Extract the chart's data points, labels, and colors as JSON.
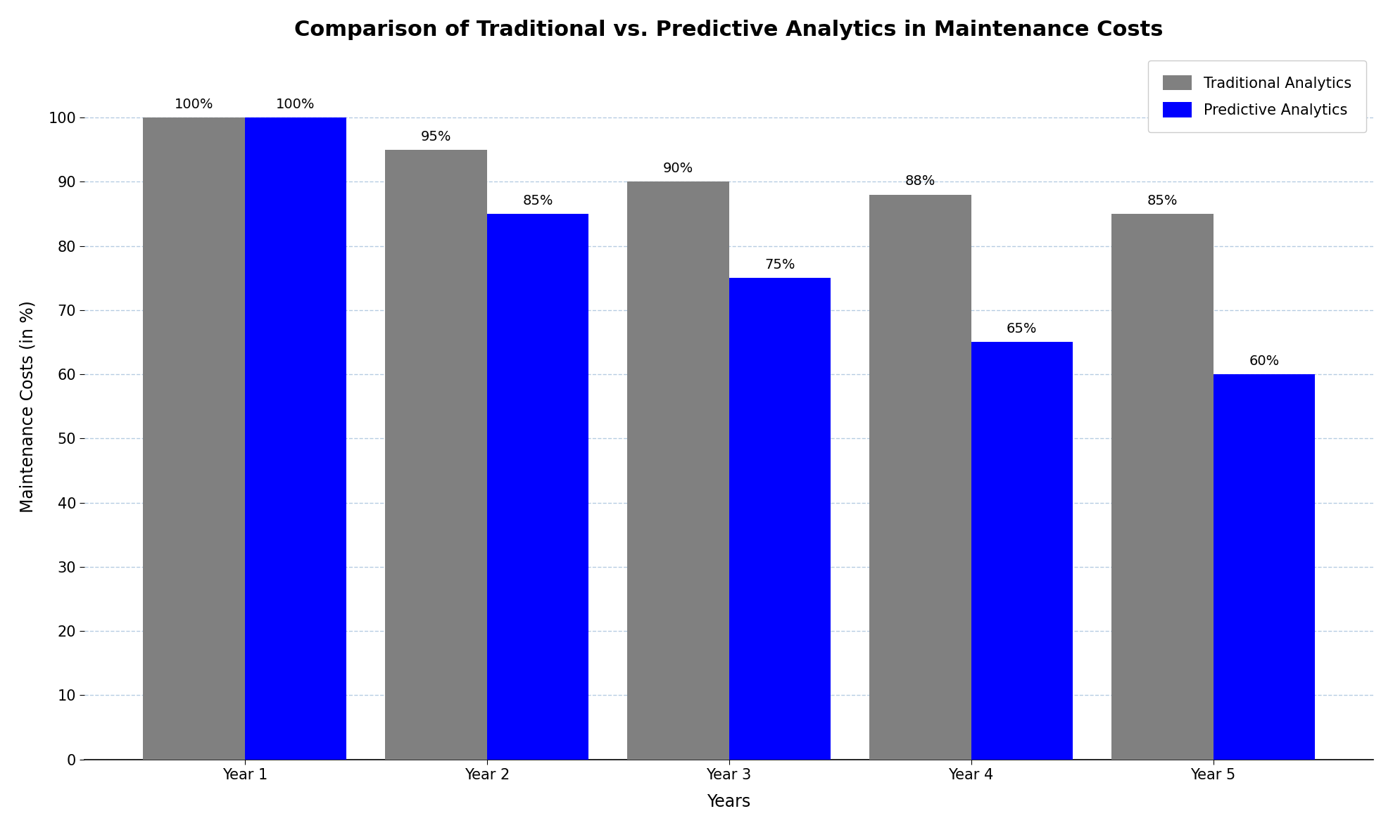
{
  "title": "Comparison of Traditional vs. Predictive Analytics in Maintenance Costs",
  "xlabel": "Years",
  "ylabel": "Maintenance Costs (in %)",
  "categories": [
    "Year 1",
    "Year 2",
    "Year 3",
    "Year 4",
    "Year 5"
  ],
  "traditional": [
    100,
    95,
    90,
    88,
    85
  ],
  "predictive": [
    100,
    85,
    75,
    65,
    60
  ],
  "traditional_color": "#808080",
  "predictive_color": "#0000ff",
  "ylim": [
    0,
    110
  ],
  "yticks": [
    0,
    10,
    20,
    30,
    40,
    50,
    60,
    70,
    80,
    90,
    100
  ],
  "bar_width": 0.42,
  "title_fontsize": 22,
  "axis_label_fontsize": 17,
  "tick_fontsize": 15,
  "legend_fontsize": 15,
  "annot_fontsize": 14,
  "legend_labels": [
    "Traditional Analytics",
    "Predictive Analytics"
  ],
  "background_color": "#ffffff",
  "grid_color": "#aac4dd",
  "grid_style": "--",
  "grid_alpha": 0.85
}
